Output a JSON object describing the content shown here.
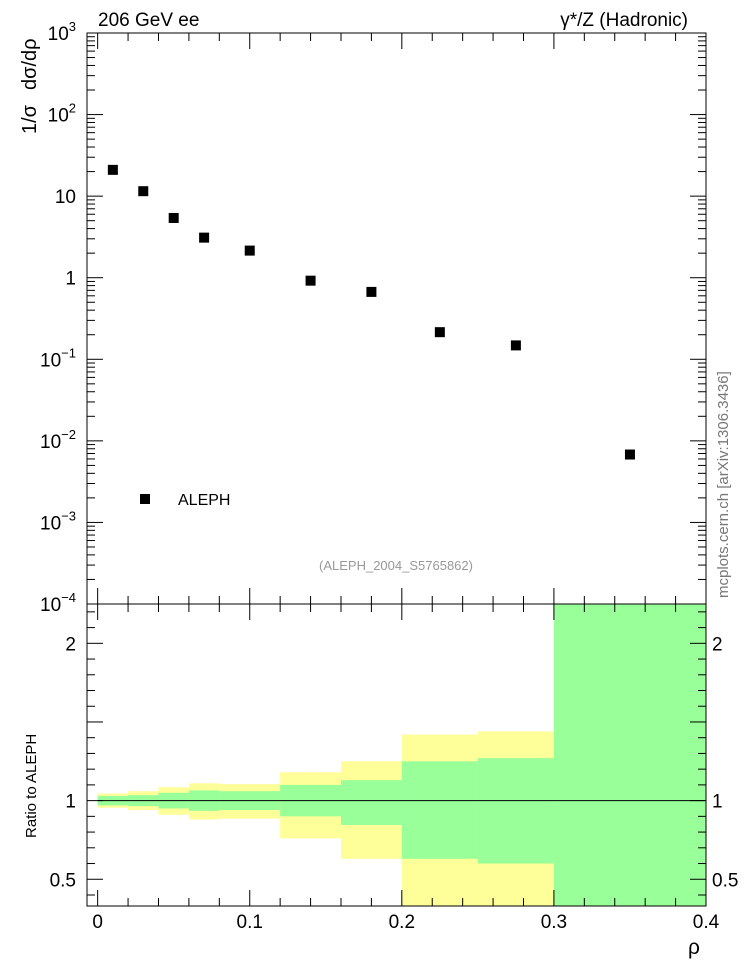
{
  "header": {
    "left": "206 GeV ee",
    "right": "γ*/Z (Hadronic)"
  },
  "side_label": "mcplots.cern.ch [arXiv:1306.3436]",
  "analysis_label": "(ALEPH_2004_S5765862)",
  "chart_data": [
    {
      "type": "scatter",
      "name": "main",
      "ylabel_parts": [
        "1/σ",
        "dσ/dρ"
      ],
      "yscale": "log",
      "ylim": [
        0.0001,
        1000
      ],
      "xlim": [
        -0.007,
        0.4
      ],
      "y_tick_labels": [
        {
          "value": 1000,
          "base": "10",
          "exp": "3"
        },
        {
          "value": 100,
          "base": "10",
          "exp": "2"
        },
        {
          "value": 10,
          "base": "10",
          "exp": ""
        },
        {
          "value": 1,
          "base": "1",
          "exp": ""
        },
        {
          "value": 0.1,
          "base": "10",
          "exp": "−1"
        },
        {
          "value": 0.01,
          "base": "10",
          "exp": "−2"
        },
        {
          "value": 0.001,
          "base": "10",
          "exp": "−3"
        },
        {
          "value": 0.0001,
          "base": "10",
          "exp": "−4"
        }
      ],
      "legend": {
        "label": "ALEPH",
        "position": "bottom-left"
      },
      "series": [
        {
          "name": "ALEPH",
          "color": "#000000",
          "x": [
            0.01,
            0.03,
            0.05,
            0.07,
            0.1,
            0.14,
            0.18,
            0.225,
            0.275,
            0.35
          ],
          "y": [
            21,
            11.5,
            5.4,
            3.1,
            2.15,
            0.92,
            0.67,
            0.215,
            0.148,
            0.0068
          ]
        }
      ]
    },
    {
      "type": "area",
      "name": "ratio",
      "ylabel": "Ratio to ALEPH",
      "xlabel": "ρ",
      "ylim": [
        0.33,
        2.25
      ],
      "xlim": [
        -0.007,
        0.4
      ],
      "x_ticks": [
        0,
        0.1,
        0.2,
        0.3,
        0.4
      ],
      "x_tick_labels": [
        "0",
        "0.1",
        "0.2",
        "0.3",
        "0.4"
      ],
      "y_ticks": [
        0.5,
        1,
        2
      ],
      "y_tick_labels": [
        "0.5",
        "1",
        "2"
      ],
      "reference_line": 1,
      "bins": [
        {
          "lo": 0.0,
          "hi": 0.02,
          "yellow": [
            0.955,
            1.045
          ],
          "green": [
            0.97,
            1.03
          ]
        },
        {
          "lo": 0.02,
          "hi": 0.04,
          "yellow": [
            0.94,
            1.06
          ],
          "green": [
            0.965,
            1.035
          ]
        },
        {
          "lo": 0.04,
          "hi": 0.06,
          "yellow": [
            0.91,
            1.085
          ],
          "green": [
            0.95,
            1.05
          ]
        },
        {
          "lo": 0.06,
          "hi": 0.08,
          "yellow": [
            0.88,
            1.11
          ],
          "green": [
            0.935,
            1.065
          ]
        },
        {
          "lo": 0.08,
          "hi": 0.12,
          "yellow": [
            0.885,
            1.105
          ],
          "green": [
            0.94,
            1.06
          ]
        },
        {
          "lo": 0.12,
          "hi": 0.16,
          "yellow": [
            0.76,
            1.18
          ],
          "green": [
            0.9,
            1.1
          ]
        },
        {
          "lo": 0.16,
          "hi": 0.2,
          "yellow": [
            0.63,
            1.25
          ],
          "green": [
            0.845,
            1.13
          ]
        },
        {
          "lo": 0.2,
          "hi": 0.25,
          "yellow": [
            0.33,
            1.42
          ],
          "green": [
            0.63,
            1.25
          ]
        },
        {
          "lo": 0.25,
          "hi": 0.3,
          "yellow": [
            0.33,
            1.44
          ],
          "green": [
            0.6,
            1.27
          ]
        },
        {
          "lo": 0.3,
          "hi": 0.4,
          "yellow": [
            0.33,
            2.25
          ],
          "green": [
            0.33,
            2.25
          ]
        }
      ],
      "band_colors": {
        "yellow": "#ffff99",
        "green": "#99ff99"
      }
    }
  ]
}
